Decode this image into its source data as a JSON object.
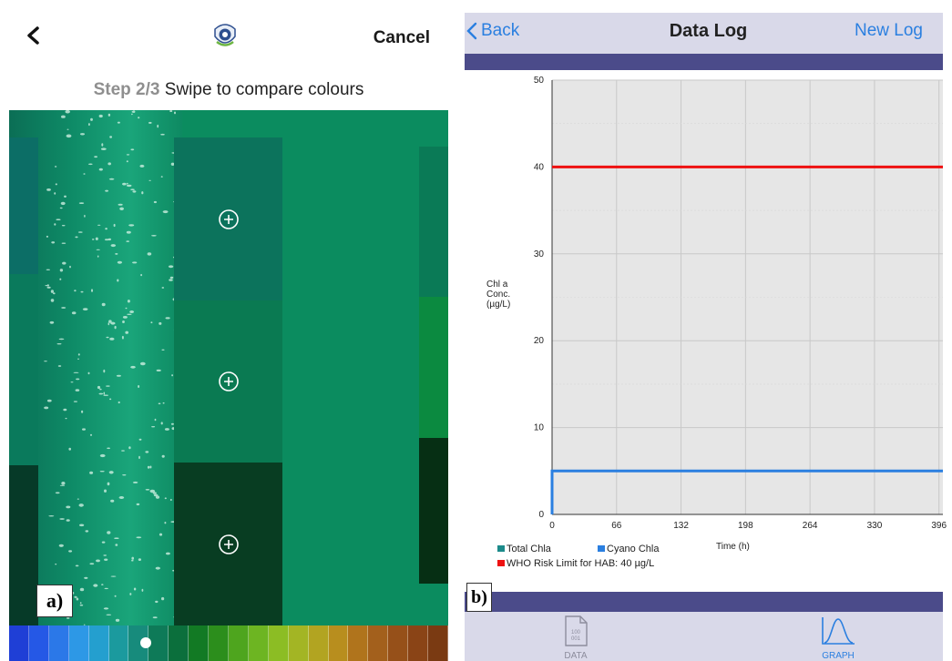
{
  "panel_a": {
    "label": "a)",
    "header": {
      "cancel_label": "Cancel",
      "step_number": "Step 2/3",
      "step_text": "Swipe to compare colours"
    },
    "swatches": [
      {
        "color": "#0c735c",
        "icon": "plus-circle-icon"
      },
      {
        "color": "#0a7a52",
        "icon": "plus-circle-icon"
      },
      {
        "color": "#083d22",
        "icon": "plus-circle-icon"
      }
    ],
    "camera_color": "#0b8c5f",
    "palette": [
      "#1f3fd6",
      "#2558e6",
      "#2b78e8",
      "#2d98e6",
      "#249fcf",
      "#1b9a9e",
      "#178b7c",
      "#0e7a58",
      "#0b6f3c",
      "#127a24",
      "#2c8e1c",
      "#4ea51e",
      "#6db522",
      "#8cbd24",
      "#a3b524",
      "#b2a421",
      "#b88e1e",
      "#b0741c",
      "#a3601c",
      "#965019",
      "#8a4416",
      "#7a3a12"
    ]
  },
  "panel_b": {
    "label": "b)",
    "nav": {
      "back_label": "Back",
      "title": "Data Log",
      "new_log_label": "New Log"
    },
    "tabs": [
      {
        "label": "DATA",
        "icon": "data-file-icon",
        "active": false
      },
      {
        "label": "GRAPH",
        "icon": "bell-curve-graph-icon",
        "active": true
      }
    ],
    "colors": {
      "accent": "#2a7fe0",
      "band": "#4b4b8a"
    }
  },
  "chart_data": {
    "type": "line",
    "xlabel": "Time (h)",
    "ylabel": "Chl a Conc. (µg/L)",
    "xlim": [
      0,
      400
    ],
    "ylim": [
      0,
      50
    ],
    "x_ticks": [
      0,
      66,
      132,
      198,
      264,
      330,
      396
    ],
    "y_ticks": [
      0,
      10,
      20,
      30,
      40,
      50
    ],
    "grid": true,
    "series": [
      {
        "name": "Total Chla",
        "color": "#1c8a8a",
        "x": [],
        "y": []
      },
      {
        "name": "Cyano Chla",
        "color": "#2a7fe0",
        "x": [
          0,
          0,
          400
        ],
        "y": [
          0,
          5,
          5
        ]
      },
      {
        "name": "WHO Risk Limit for HAB: 40 µg/L",
        "color": "#ee1111",
        "x": [
          0,
          400
        ],
        "y": [
          40,
          40
        ]
      }
    ]
  }
}
